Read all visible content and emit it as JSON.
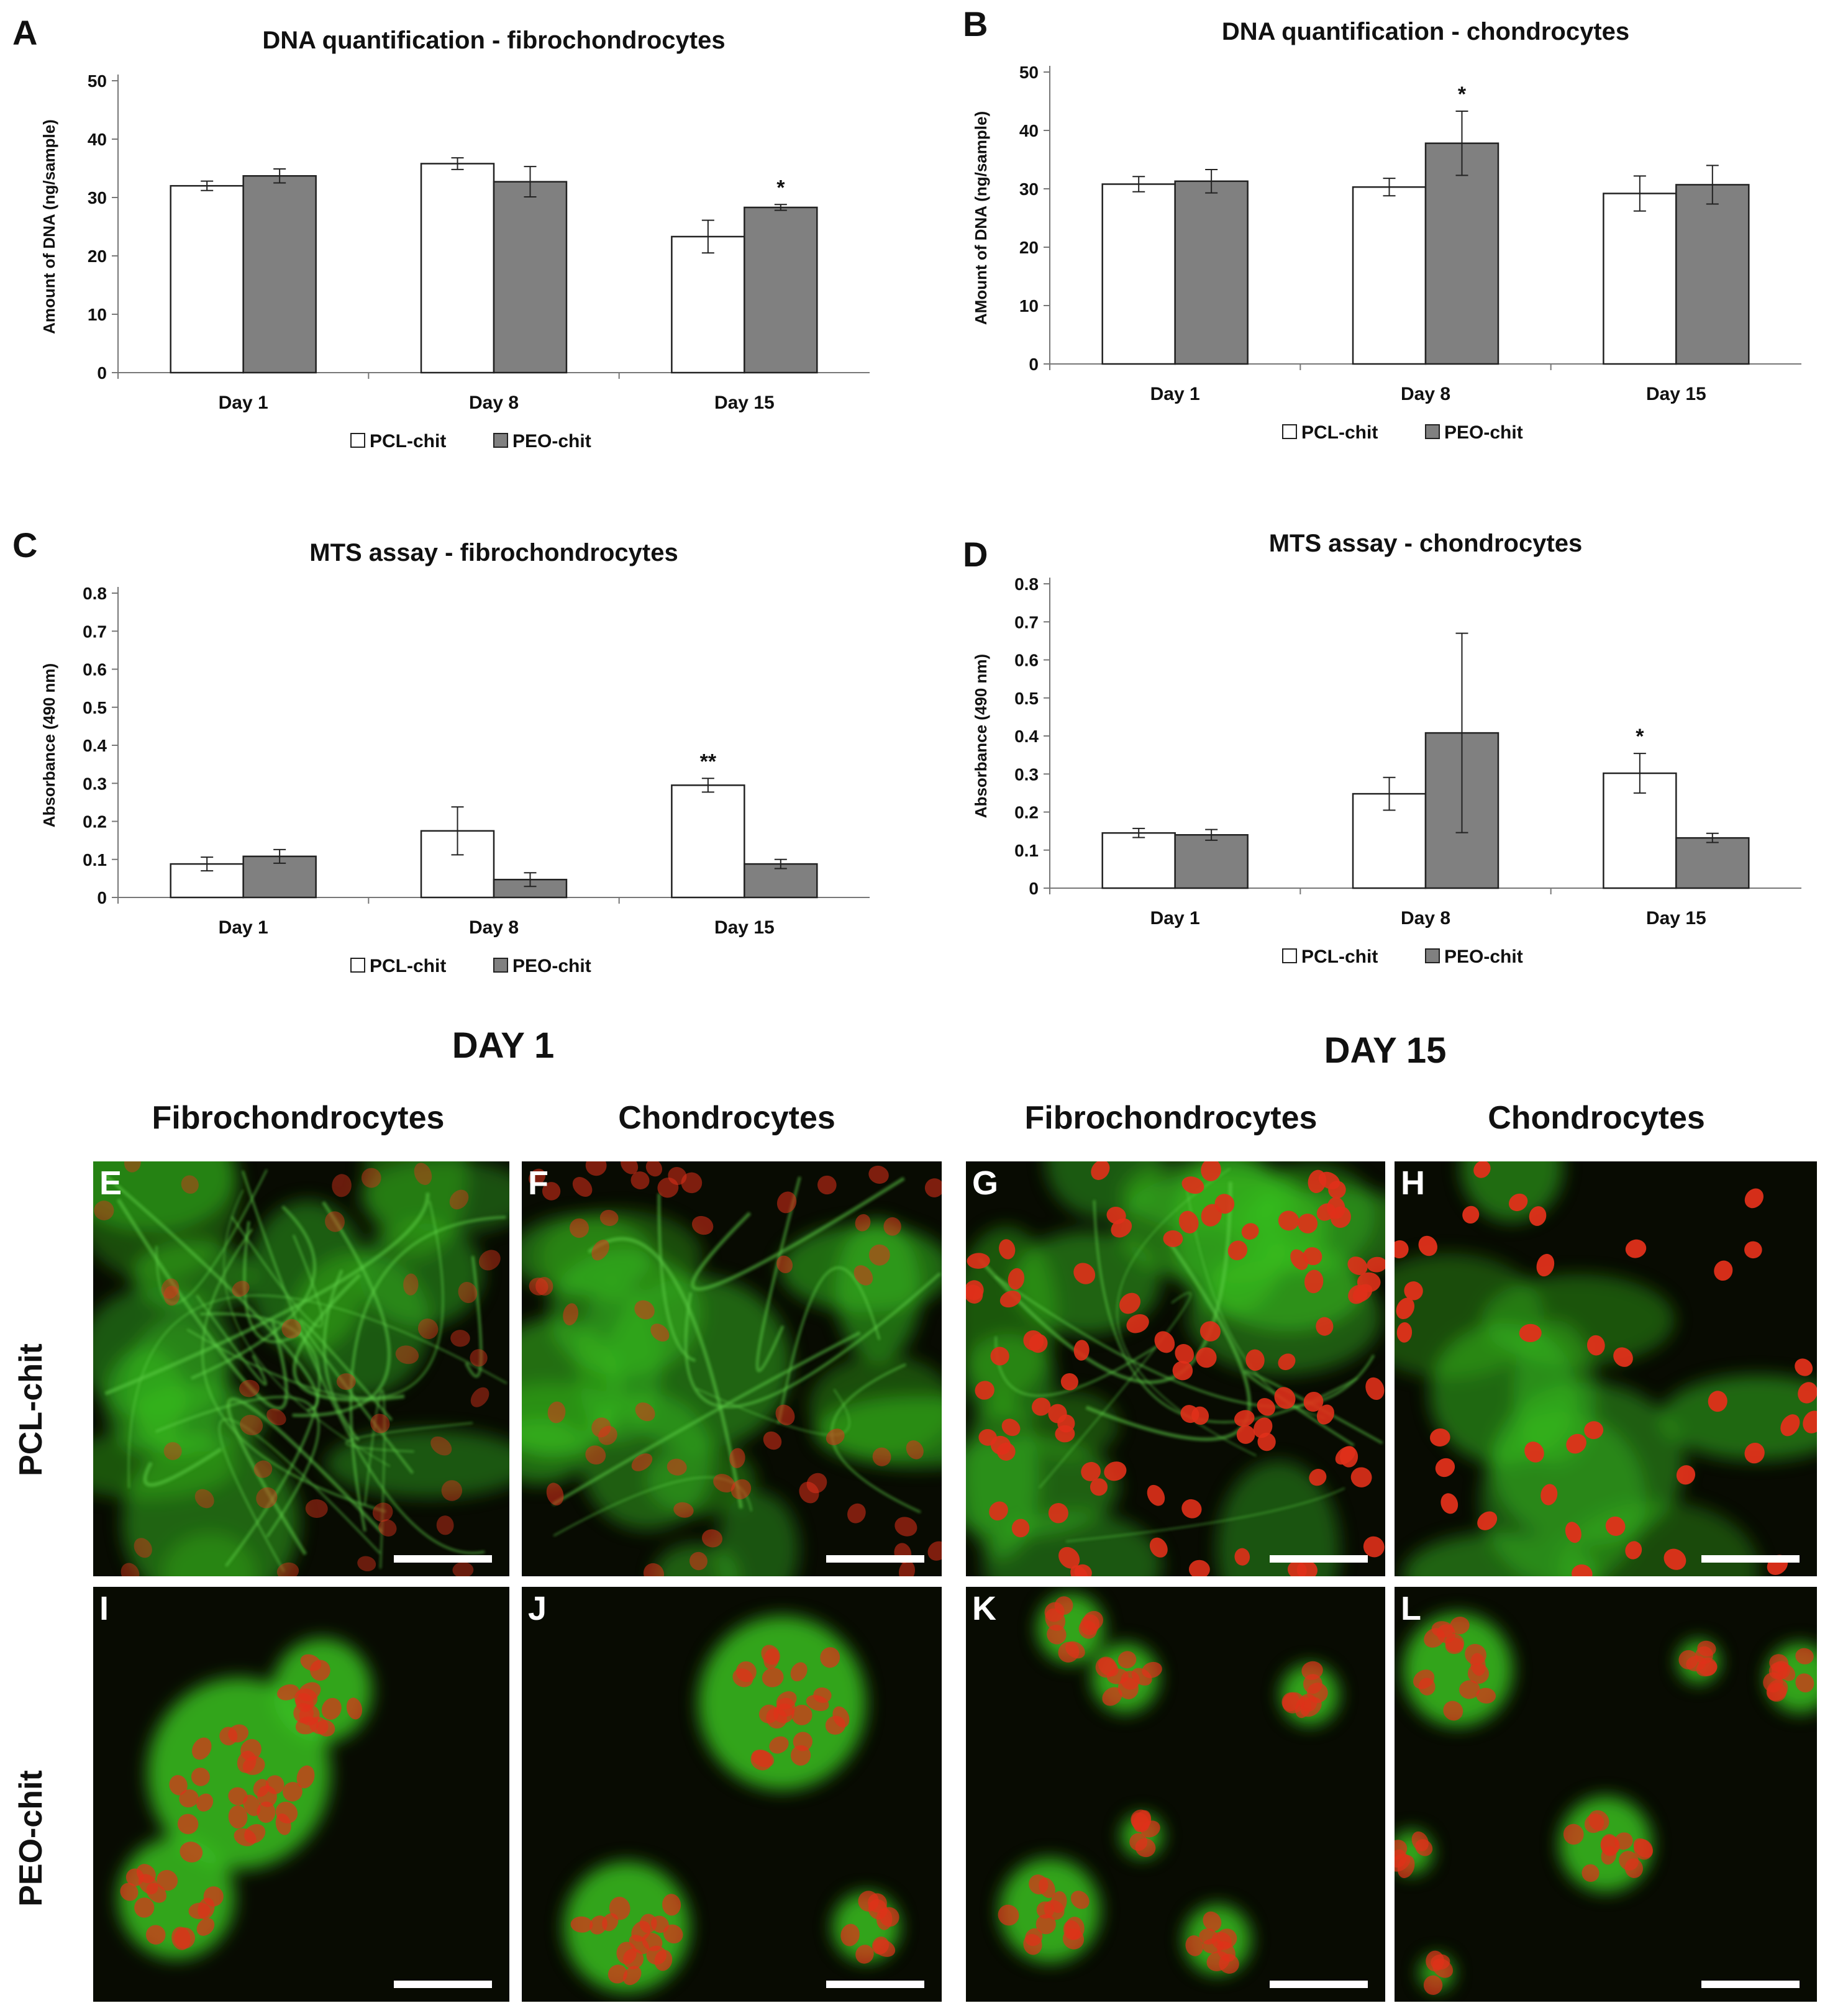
{
  "chart_data": [
    {
      "letter": "A",
      "type": "bar",
      "title": "DNA quantification - fibrochondrocytes",
      "ylabel": "Amount of DNA (ng/sample)",
      "categories": [
        "Day 1",
        "Day 8",
        "Day 15"
      ],
      "ylim": [
        0,
        50
      ],
      "yticks": [
        0,
        10,
        20,
        30,
        40,
        50
      ],
      "series": [
        {
          "name": "PCL-chit",
          "color": "#ffffff",
          "values": [
            32,
            35.8,
            23.3
          ],
          "errors": [
            0.8,
            1.0,
            2.8
          ]
        },
        {
          "name": "PEO-chit",
          "color": "#808080",
          "values": [
            33.7,
            32.7,
            28.3
          ],
          "errors": [
            1.2,
            2.6,
            0.5
          ]
        }
      ],
      "significance": [
        {
          "series": 1,
          "category": 2,
          "label": "*"
        }
      ],
      "legend": "bottom"
    },
    {
      "letter": "B",
      "type": "bar",
      "title": "DNA quantification - chondrocytes",
      "ylabel": "AMount of DNA (ng/sample)",
      "categories": [
        "Day 1",
        "Day 8",
        "Day 15"
      ],
      "ylim": [
        0,
        50
      ],
      "yticks": [
        0,
        10,
        20,
        30,
        40,
        50
      ],
      "series": [
        {
          "name": "PCL-chit",
          "color": "#ffffff",
          "values": [
            30.8,
            30.3,
            29.2
          ],
          "errors": [
            1.3,
            1.5,
            3.0
          ]
        },
        {
          "name": "PEO-chit",
          "color": "#808080",
          "values": [
            31.3,
            37.8,
            30.7
          ],
          "errors": [
            2.0,
            5.5,
            3.3
          ]
        }
      ],
      "significance": [
        {
          "series": 1,
          "category": 1,
          "label": "*"
        }
      ],
      "legend": "bottom"
    },
    {
      "letter": "C",
      "type": "bar",
      "title": "MTS assay - fibrochondrocytes",
      "ylabel": "Absorbance (490 nm)",
      "categories": [
        "Day 1",
        "Day 8",
        "Day 15"
      ],
      "ylim": [
        0,
        0.8
      ],
      "yticks": [
        0,
        0.1,
        0.2,
        0.3,
        0.4,
        0.5,
        0.6,
        0.7,
        0.8
      ],
      "series": [
        {
          "name": "PCL-chit",
          "color": "#ffffff",
          "values": [
            0.088,
            0.175,
            0.295
          ],
          "errors": [
            0.018,
            0.063,
            0.018
          ]
        },
        {
          "name": "PEO-chit",
          "color": "#808080",
          "values": [
            0.108,
            0.047,
            0.088
          ],
          "errors": [
            0.018,
            0.018,
            0.012
          ]
        }
      ],
      "significance": [
        {
          "series": 0,
          "category": 2,
          "label": "**"
        }
      ],
      "legend": "bottom"
    },
    {
      "letter": "D",
      "type": "bar",
      "title": "MTS assay - chondrocytes",
      "ylabel": "Absorbance (490 nm)",
      "categories": [
        "Day 1",
        "Day 8",
        "Day 15"
      ],
      "ylim": [
        0,
        0.8
      ],
      "yticks": [
        0,
        0.1,
        0.2,
        0.3,
        0.4,
        0.5,
        0.6,
        0.7,
        0.8
      ],
      "series": [
        {
          "name": "PCL-chit",
          "color": "#ffffff",
          "values": [
            0.145,
            0.248,
            0.302
          ],
          "errors": [
            0.012,
            0.043,
            0.052
          ]
        },
        {
          "name": "PEO-chit",
          "color": "#808080",
          "values": [
            0.14,
            0.408,
            0.132
          ],
          "errors": [
            0.014,
            0.262,
            0.012
          ]
        }
      ],
      "significance": [
        {
          "series": 0,
          "category": 2,
          "label": "*"
        }
      ],
      "legend": "bottom"
    }
  ],
  "images": {
    "day1_title": "DAY 1",
    "day15_title": "DAY 15",
    "columns": [
      "Fibrochondrocytes",
      "Chondrocytes",
      "Fibrochondrocytes",
      "Chondrocytes"
    ],
    "rows": [
      "PCL-chit",
      "PEO-chit"
    ],
    "panels": [
      "E",
      "F",
      "G",
      "H",
      "I",
      "J",
      "K",
      "L"
    ],
    "colors": {
      "nuclei": "#e0301a",
      "cytoplasm": "#38c020",
      "background": "#080b02"
    }
  }
}
